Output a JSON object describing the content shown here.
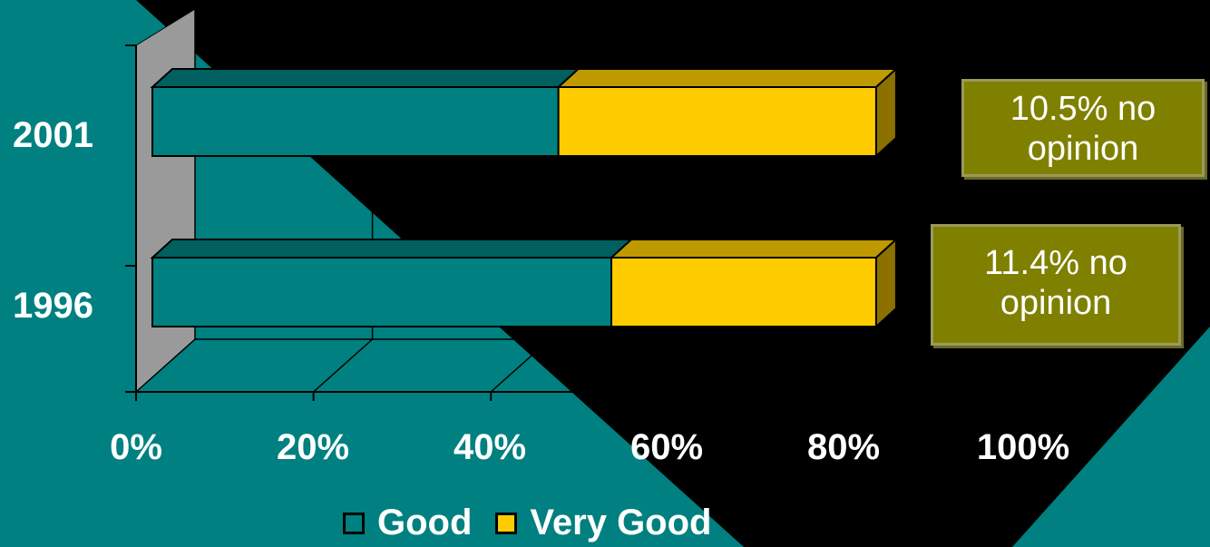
{
  "chart_data": {
    "type": "bar",
    "orientation": "horizontal",
    "stacked": true,
    "categories": [
      "2001",
      "1996"
    ],
    "series": [
      {
        "name": "Good",
        "values": [
          46,
          52
        ],
        "color": "#008080"
      },
      {
        "name": "Very Good",
        "values": [
          36,
          30
        ],
        "color": "#ffcc00"
      }
    ],
    "x_ticks": [
      "0%",
      "20%",
      "40%",
      "60%",
      "80%",
      "100%"
    ],
    "xlim": [
      0,
      100
    ],
    "grid": true,
    "legend_position": "bottom",
    "annotations": [
      {
        "category": "2001",
        "text_line1": "10.5% no",
        "text_line2": "opinion"
      },
      {
        "category": "1996",
        "text_line1": "11.4% no",
        "text_line2": "opinion"
      }
    ],
    "background": "#000000",
    "accent": "#008080",
    "annotation_color": "#808000"
  }
}
